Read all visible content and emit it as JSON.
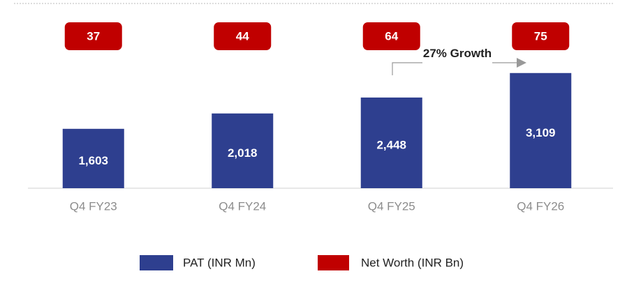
{
  "chart_data": {
    "type": "bar",
    "categories": [
      "Q4 FY23",
      "Q4 FY24",
      "Q4 FY25",
      "Q4 FY26"
    ],
    "series": [
      {
        "name": "PAT (INR Mn)",
        "color": "#2e3f8f",
        "values": [
          1603,
          2018,
          2448,
          3109
        ],
        "value_labels": [
          "1,603",
          "2,018",
          "2,448",
          "3,109"
        ]
      },
      {
        "name": "Net Worth (INR Bn)",
        "color": "#c00000",
        "values": [
          37,
          44,
          64,
          75
        ]
      }
    ],
    "ylim": [
      0,
      3500
    ],
    "annotation": "27% Growth"
  }
}
